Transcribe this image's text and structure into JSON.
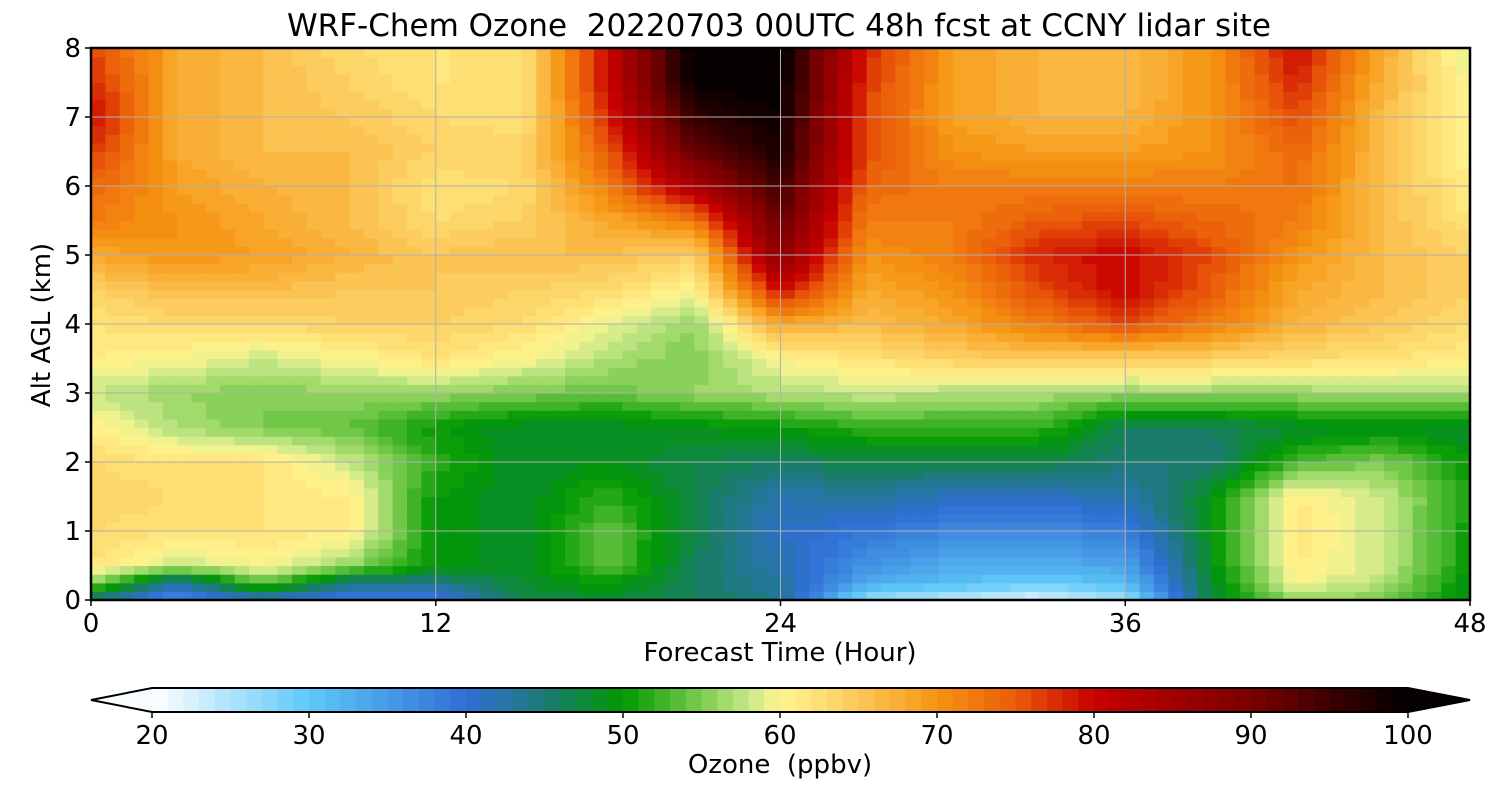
{
  "chart_data": {
    "type": "heatmap",
    "title": "WRF-Chem Ozone  20220703 00UTC 48h fcst at CCNY lidar site",
    "xlabel": "Forecast Time (Hour)",
    "ylabel": "Alt AGL (km)",
    "xlim": [
      0,
      48
    ],
    "ylim": [
      0,
      8
    ],
    "x_ticks": [
      0,
      12,
      24,
      36,
      48
    ],
    "y_ticks": [
      0,
      1,
      2,
      3,
      4,
      5,
      6,
      7,
      8
    ],
    "grid": true,
    "x": [
      0,
      3,
      6,
      9,
      12,
      15,
      18,
      21,
      24,
      27,
      30,
      33,
      36,
      39,
      42,
      45,
      48
    ],
    "y": [
      0,
      0.25,
      0.5,
      1,
      1.5,
      2,
      2.5,
      3,
      3.5,
      4,
      4.5,
      5,
      5.5,
      6,
      6.5,
      7,
      7.5,
      8
    ],
    "z": [
      [
        44,
        36,
        40,
        38,
        38,
        47,
        48,
        46,
        44,
        26,
        24,
        22,
        26,
        48,
        56,
        55,
        49
      ],
      [
        56,
        42,
        54,
        44,
        44,
        48,
        50,
        46,
        43,
        33,
        31,
        29,
        31,
        48,
        60,
        57,
        49
      ],
      [
        62,
        58,
        60,
        56,
        50,
        48,
        54,
        46,
        42,
        36,
        33,
        33,
        34,
        49,
        61,
        58,
        50
      ],
      [
        63,
        62,
        62,
        61,
        50,
        48,
        54,
        47,
        41,
        39,
        37,
        37,
        38,
        49,
        62,
        58,
        50
      ],
      [
        64,
        63,
        62,
        61,
        50,
        48,
        52,
        47,
        42,
        43,
        41,
        41,
        42,
        49,
        61,
        58,
        51
      ],
      [
        63,
        62,
        62,
        58,
        52,
        48,
        49,
        47,
        46,
        47,
        47,
        47,
        45,
        45,
        53,
        55,
        50
      ],
      [
        61,
        57,
        55,
        54,
        50,
        48,
        48,
        49,
        50,
        52,
        52,
        52,
        46,
        46,
        48,
        49,
        48
      ],
      [
        58,
        56,
        55,
        56,
        56,
        55,
        54,
        56,
        57,
        58,
        57,
        57,
        56,
        56,
        56,
        57,
        57
      ],
      [
        61,
        60,
        58,
        60,
        62,
        60,
        57,
        55,
        60,
        62,
        64,
        65,
        64,
        64,
        63,
        62,
        61
      ],
      [
        62,
        63,
        63,
        64,
        64,
        63,
        59,
        56,
        68,
        66,
        68,
        72,
        76,
        72,
        67,
        65,
        63
      ],
      [
        64,
        66,
        66,
        65,
        65,
        64,
        63,
        60,
        80,
        68,
        70,
        76,
        80,
        75,
        68,
        66,
        64
      ],
      [
        68,
        70,
        69,
        67,
        65,
        66,
        66,
        64,
        88,
        70,
        72,
        78,
        80,
        76,
        70,
        66,
        64
      ],
      [
        72,
        70,
        68,
        66,
        63,
        64,
        68,
        72,
        92,
        72,
        72,
        75,
        76,
        74,
        72,
        66,
        62
      ],
      [
        74,
        69,
        67,
        66,
        62,
        63,
        72,
        84,
        95,
        74,
        72,
        72,
        72,
        72,
        73,
        66,
        61
      ],
      [
        77,
        68,
        66,
        66,
        64,
        64,
        75,
        92,
        98,
        76,
        70,
        69,
        69,
        70,
        74,
        66,
        60
      ],
      [
        80,
        68,
        66,
        65,
        63,
        62,
        78,
        96,
        99,
        76,
        69,
        67,
        67,
        70,
        76,
        66,
        60
      ],
      [
        78,
        68,
        66,
        64,
        62,
        62,
        80,
        100,
        100,
        77,
        69,
        67,
        66,
        70,
        78,
        67,
        60
      ],
      [
        76,
        68,
        66,
        63,
        62,
        62,
        80,
        100,
        100,
        78,
        69,
        67,
        66,
        70,
        80,
        68,
        58
      ]
    ],
    "colorbar": {
      "label": "Ozone  (ppbv)",
      "min": 20,
      "max": 100,
      "ticks": [
        20,
        30,
        40,
        50,
        60,
        70,
        80,
        90,
        100
      ],
      "extend": "both",
      "orientation": "horizontal",
      "colors": [
        {
          "value": 20,
          "color": "#ffffff"
        },
        {
          "value": 30,
          "color": "#5ec8f8"
        },
        {
          "value": 40,
          "color": "#2f6fd4"
        },
        {
          "value": 45,
          "color": "#1d7a78"
        },
        {
          "value": 50,
          "color": "#009900"
        },
        {
          "value": 55,
          "color": "#7ccc50"
        },
        {
          "value": 58,
          "color": "#c8e888"
        },
        {
          "value": 60,
          "color": "#fff590"
        },
        {
          "value": 65,
          "color": "#fcc858"
        },
        {
          "value": 70,
          "color": "#f59412"
        },
        {
          "value": 75,
          "color": "#ea5c0a"
        },
        {
          "value": 80,
          "color": "#c80000"
        },
        {
          "value": 90,
          "color": "#7a0000"
        },
        {
          "value": 100,
          "color": "#000000"
        }
      ]
    }
  }
}
